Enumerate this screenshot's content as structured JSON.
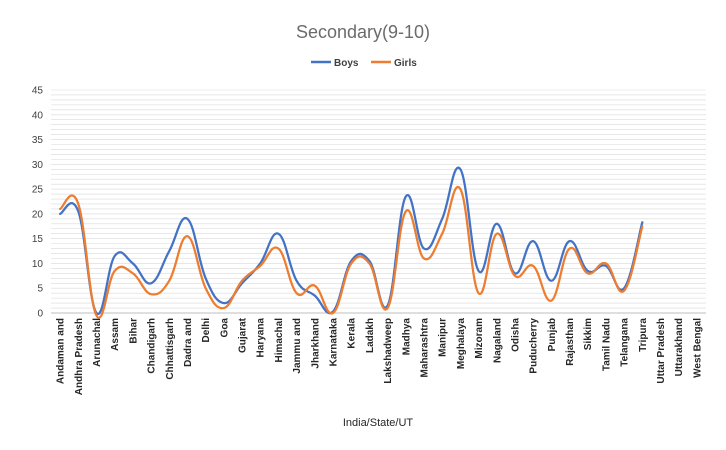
{
  "chart_data": {
    "type": "line",
    "title": "Secondary(9-10)",
    "xlabel": "India/State/UT",
    "ylabel": "",
    "ylim": [
      0,
      45
    ],
    "yticks": [
      0,
      5,
      10,
      15,
      20,
      25,
      30,
      35,
      40,
      45
    ],
    "grid": true,
    "legend_position": "top",
    "categories": [
      "Andaman and",
      "Andhra Pradesh",
      "Arunachal",
      "Assam",
      "Bihar",
      "Chandigarh",
      "Chhattisgarh",
      "Dadra and",
      "Delhi",
      "Goa",
      "Gujarat",
      "Haryana",
      "Himachal",
      "Jammu and",
      "Jharkhand",
      "Karnataka",
      "Kerala",
      "Ladakh",
      "Lakshadweep",
      "Madhya",
      "Maharashtra",
      "Manipur",
      "Meghalaya",
      "Mizoram",
      "Nagaland",
      "Odisha",
      "Puducherry",
      "Punjab",
      "Rajasthan",
      "Sikkim",
      "Tamil Nadu",
      "Telangana",
      "Tripura",
      "Uttar Pradesh",
      "Uttarakhand",
      "West Bengal"
    ],
    "series": [
      {
        "name": "Boys",
        "color": "#4472c4",
        "values": [
          20,
          20.5,
          0,
          11.5,
          10,
          6,
          12.5,
          19,
          7,
          2,
          6,
          10,
          16,
          6.5,
          3.5,
          0.3,
          10.5,
          10.5,
          1.5,
          23.5,
          13,
          19,
          29,
          8.5,
          18,
          8,
          14.5,
          6.5,
          14.5,
          8.5,
          9.5,
          5,
          18.3,
          null,
          null,
          null
        ]
      },
      {
        "name": "Girls",
        "color": "#ed7d31",
        "values": [
          21,
          22,
          -0.5,
          8.5,
          8,
          3.8,
          6.5,
          15.5,
          5,
          1,
          6.5,
          9.5,
          13,
          4,
          5.5,
          0,
          10,
          10,
          1,
          20.5,
          11,
          16,
          25,
          4,
          16,
          7.5,
          9.5,
          2.5,
          13,
          8,
          10,
          4.5,
          17.5,
          null,
          null,
          null
        ]
      }
    ]
  }
}
